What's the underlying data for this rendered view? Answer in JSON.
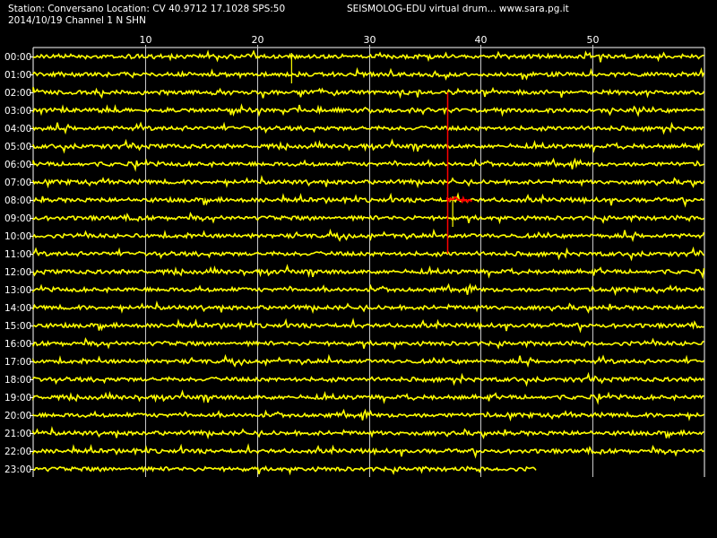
{
  "header": {
    "station_line": "Station: Conversano Location: CV 40.9712 17.1028 SPS:50",
    "date_line": "2014/10/19  Channel 1 N SHN",
    "site_line": "SEISMOLOG-EDU virtual drum... www.sara.pg.it"
  },
  "colors": {
    "background": "#000000",
    "trace": "#ffff00",
    "grid": "#ffffff",
    "event": "#ff0000",
    "text": "#ffffff"
  },
  "chart_data": {
    "type": "line",
    "x_ticks": [
      "10",
      "20",
      "30",
      "40",
      "50"
    ],
    "x_tick_values": [
      10,
      20,
      30,
      40,
      50
    ],
    "xlim": [
      0,
      60
    ],
    "row_labels": [
      "00:00",
      "01:00",
      "02:00",
      "03:00",
      "04:00",
      "05:00",
      "06:00",
      "07:00",
      "08:00",
      "09:00",
      "10:00",
      "11:00",
      "12:00",
      "13:00",
      "14:00",
      "15:00",
      "16:00",
      "17:00",
      "18:00",
      "19:00",
      "20:00",
      "21:00",
      "22:00",
      "23:00"
    ],
    "last_row_end_minute": 45,
    "event": {
      "marker_minute": 37,
      "start_row": "02:00",
      "end_row": "11:00",
      "signal_row": "08:00",
      "signal_start_minute": 37,
      "signal_end_minute": 39.3
    },
    "spikes": [
      {
        "row": "00:00",
        "minute": 23.1
      },
      {
        "row": "08:00",
        "minute": 37.5
      }
    ],
    "grid": true
  }
}
